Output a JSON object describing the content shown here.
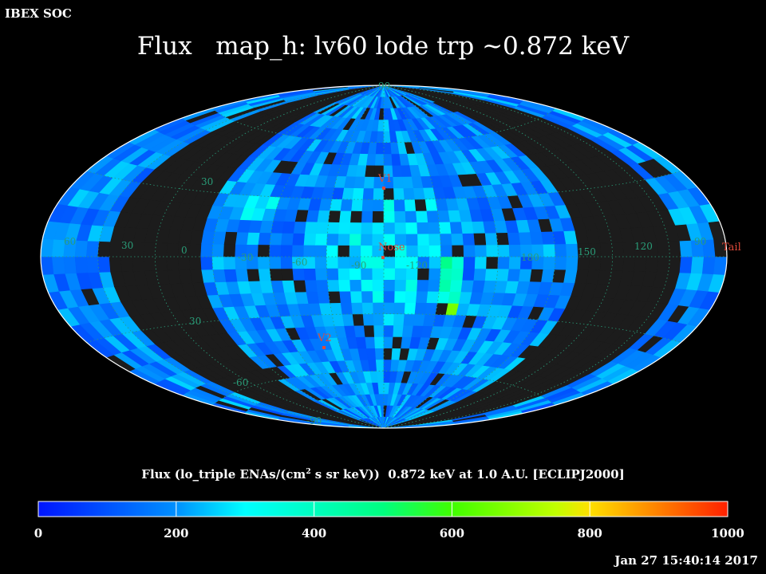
{
  "header": {
    "corner_label": "IBEX SOC",
    "title": "Flux   map_h: lv60 lode trp ~0.872 keV"
  },
  "caption": {
    "pre": "Flux (lo_triple ENAs/(cm",
    "sup": "2",
    "post": " s sr keV))  0.872 keV at 1.0 A.U. [ECLIPJ2000]"
  },
  "timestamp": "Jan 27 15:40:14 2017",
  "chart_data": {
    "type": "heatmap",
    "projection": "Aitoff/Mollweide all-sky, ecliptic J2000",
    "title": "Flux   map_h: lv60 lode trp ~0.872 keV",
    "colorbar": {
      "label": "Flux (lo_triple ENAs/(cm2 s sr keV))  0.872 keV at 1.0 A.U. [ECLIPJ2000]",
      "range": [
        0,
        1000
      ],
      "ticks": [
        "0",
        "200",
        "400",
        "600",
        "800",
        "1000"
      ],
      "colormap": [
        "#0000ff",
        "#00ffff",
        "#00ff00",
        "#ffff00",
        "#ff0000"
      ]
    },
    "longitude_labels": [
      "60",
      "30",
      "0",
      "-30",
      "-60",
      "-90",
      "-120",
      "180",
      "150",
      "120",
      "90"
    ],
    "latitude_labels": [
      "90",
      "30",
      "30",
      "-60",
      "-90"
    ],
    "markers": [
      {
        "name": "V1"
      },
      {
        "name": "Nose"
      },
      {
        "name": "V2"
      },
      {
        "name": "Tail"
      }
    ],
    "approx_flux_hotspots": [
      {
        "region": "south of nose, near longitude -120",
        "value": 700
      },
      {
        "region": "band near longitude -120, lat 0 to -30",
        "value": 450
      },
      {
        "region": "nose region",
        "value": 300
      }
    ],
    "background_level": 180,
    "no_data_color": "#1c1c1c",
    "grid": true
  }
}
